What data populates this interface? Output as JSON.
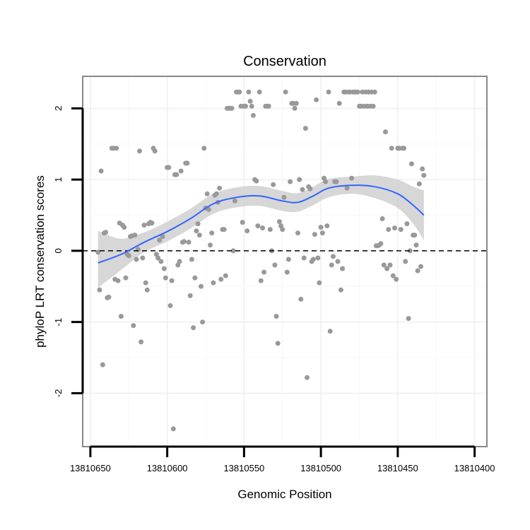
{
  "chart_data": {
    "type": "scatter",
    "title": "Conservation",
    "xlabel": "Genomic Position",
    "ylabel": "phyloP LRT conservation scores",
    "x_reversed": true,
    "xlim": [
      13810655,
      13810392
    ],
    "ylim": [
      -2.75,
      2.45
    ],
    "x_ticks": [
      13810650,
      13810600,
      13810550,
      13810500,
      13810450,
      13810400
    ],
    "x_tick_labels": [
      "13810650",
      "13810600",
      "13810550",
      "13810500",
      "13810450",
      "13810400"
    ],
    "y_ticks": [
      -2,
      -1,
      0,
      1,
      2
    ],
    "y_tick_labels": [
      "-2",
      "-1",
      "0",
      "1",
      "2"
    ],
    "reference_line": {
      "y": 0,
      "style": "dashed"
    },
    "colors": {
      "points": "#999999",
      "smooth": "#3366ff",
      "band": "#d0d0d0",
      "panel_border": "#888888",
      "grid": "#f0f0f0"
    },
    "points": [
      [
        13810645,
        -0.02
      ],
      [
        13810644,
        -0.55
      ],
      [
        13810643,
        1.12
      ],
      [
        13810642,
        -1.6
      ],
      [
        13810641,
        0.25
      ],
      [
        13810640,
        0.26
      ],
      [
        13810639,
        -0.66
      ],
      [
        13810638,
        -0.65
      ],
      [
        13810636,
        1.44
      ],
      [
        13810635,
        1.44
      ],
      [
        13810634,
        -0.4
      ],
      [
        13810633,
        1.44
      ],
      [
        13810632,
        -0.42
      ],
      [
        13810631,
        0.39
      ],
      [
        13810630,
        -0.92
      ],
      [
        13810629,
        0.36
      ],
      [
        13810628,
        0.33
      ],
      [
        13810627,
        -0.38
      ],
      [
        13810626,
        -0.05
      ],
      [
        13810625,
        -0.07
      ],
      [
        13810624,
        0.2
      ],
      [
        13810623,
        0.21
      ],
      [
        13810622,
        -1.05
      ],
      [
        13810621,
        0.22
      ],
      [
        13810620,
        -0.12
      ],
      [
        13810619,
        0.02
      ],
      [
        13810618,
        1.4
      ],
      [
        13810617,
        -1.28
      ],
      [
        13810616,
        -0.1
      ],
      [
        13810615,
        0.36
      ],
      [
        13810614,
        -0.45
      ],
      [
        13810613,
        -0.55
      ],
      [
        13810612,
        0.38
      ],
      [
        13810611,
        0.4
      ],
      [
        13810610,
        0.39
      ],
      [
        13810609,
        1.44
      ],
      [
        13810608,
        1.4
      ],
      [
        13810607,
        -0.05
      ],
      [
        13810606,
        -0.1
      ],
      [
        13810605,
        0.15
      ],
      [
        13810604,
        -0.15
      ],
      [
        13810603,
        0.2
      ],
      [
        13810602,
        -0.25
      ],
      [
        13810601,
        -0.38
      ],
      [
        13810600,
        1.17
      ],
      [
        13810599,
        1.17
      ],
      [
        13810598,
        -0.77
      ],
      [
        13810597,
        -0.42
      ],
      [
        13810596,
        -2.5
      ],
      [
        13810595,
        1.07
      ],
      [
        13810594,
        1.07
      ],
      [
        13810593,
        -0.2
      ],
      [
        13810592,
        -0.15
      ],
      [
        13810591,
        1.12
      ],
      [
        13810590,
        0.12
      ],
      [
        13810589,
        0.13
      ],
      [
        13810588,
        1.23
      ],
      [
        13810587,
        1.23
      ],
      [
        13810586,
        0.12
      ],
      [
        13810585,
        -0.63
      ],
      [
        13810584,
        -0.12
      ],
      [
        13810583,
        -1.08
      ],
      [
        13810582,
        -0.38
      ],
      [
        13810581,
        0.28
      ],
      [
        13810580,
        0.38
      ],
      [
        13810579,
        0.22
      ],
      [
        13810578,
        -0.5
      ],
      [
        13810577,
        -1.0
      ],
      [
        13810576,
        1.44
      ],
      [
        13810575,
        0.6
      ],
      [
        13810574,
        0.8
      ],
      [
        13810573,
        0.58
      ],
      [
        13810572,
        0.08
      ],
      [
        13810571,
        0.25
      ],
      [
        13810570,
        -0.45
      ],
      [
        13810569,
        0.78
      ],
      [
        13810568,
        0.8
      ],
      [
        13810567,
        0.68
      ],
      [
        13810566,
        0.88
      ],
      [
        13810565,
        -0.4
      ],
      [
        13810564,
        0.3
      ],
      [
        13810563,
        0.3
      ],
      [
        13810562,
        -0.35
      ],
      [
        13810561,
        2.0
      ],
      [
        13810560,
        2.0
      ],
      [
        13810559,
        2.0
      ],
      [
        13810558,
        2.0
      ],
      [
        13810557,
        0.0
      ],
      [
        13810556,
        0.7
      ],
      [
        13810555,
        2.23
      ],
      [
        13810554,
        2.23
      ],
      [
        13810553,
        2.23
      ],
      [
        13810552,
        2.03
      ],
      [
        13810551,
        0.4
      ],
      [
        13810550,
        2.03
      ],
      [
        13810549,
        2.03
      ],
      [
        13810548,
        0.28
      ],
      [
        13810547,
        2.23
      ],
      [
        13810546,
        2.1
      ],
      [
        13810545,
        2.03
      ],
      [
        13810544,
        1.9
      ],
      [
        13810543,
        1.0
      ],
      [
        13810542,
        0.98
      ],
      [
        13810541,
        0.35
      ],
      [
        13810540,
        2.23
      ],
      [
        13810539,
        -0.42
      ],
      [
        13810538,
        0.32
      ],
      [
        13810537,
        -0.3
      ],
      [
        13810536,
        2.03
      ],
      [
        13810535,
        2.03
      ],
      [
        13810534,
        2.03
      ],
      [
        13810533,
        0.3
      ],
      [
        13810532,
        0.0
      ],
      [
        13810531,
        0.93
      ],
      [
        13810530,
        -0.2
      ],
      [
        13810529,
        -0.92
      ],
      [
        13810528,
        -1.3
      ],
      [
        13810527,
        0.41
      ],
      [
        13810526,
        0.35
      ],
      [
        13810525,
        0.3
      ],
      [
        13810524,
        0.75
      ],
      [
        13810523,
        2.23
      ],
      [
        13810522,
        -0.3
      ],
      [
        13810521,
        -0.12
      ],
      [
        13810520,
        0.97
      ],
      [
        13810519,
        2.07
      ],
      [
        13810518,
        2.07
      ],
      [
        13810517,
        2.0
      ],
      [
        13810516,
        2.07
      ],
      [
        13810515,
        0.25
      ],
      [
        13810514,
        1.0
      ],
      [
        13810513,
        -0.68
      ],
      [
        13810512,
        0.86
      ],
      [
        13810511,
        -0.1
      ],
      [
        13810510,
        1.72
      ],
      [
        13810509,
        -1.78
      ],
      [
        13810508,
        0.9
      ],
      [
        13810507,
        0.87
      ],
      [
        13810506,
        -0.15
      ],
      [
        13810505,
        -0.12
      ],
      [
        13810504,
        0.23
      ],
      [
        13810503,
        2.12
      ],
      [
        13810502,
        -0.1
      ],
      [
        13810501,
        -0.45
      ],
      [
        13810500,
        0.33
      ],
      [
        13810499,
        0.25
      ],
      [
        13810498,
        1.02
      ],
      [
        13810497,
        0.97
      ],
      [
        13810496,
        0.35
      ],
      [
        13810495,
        2.23
      ],
      [
        13810494,
        -1.13
      ],
      [
        13810493,
        -0.2
      ],
      [
        13810492,
        -0.08
      ],
      [
        13810491,
        0.97
      ],
      [
        13810490,
        0.97
      ],
      [
        13810489,
        -0.15
      ],
      [
        13810488,
        2.07
      ],
      [
        13810487,
        -0.55
      ],
      [
        13810486,
        -0.25
      ],
      [
        13810485,
        2.23
      ],
      [
        13810484,
        2.23
      ],
      [
        13810483,
        0.88
      ],
      [
        13810482,
        2.23
      ],
      [
        13810481,
        2.23
      ],
      [
        13810480,
        1.02
      ],
      [
        13810479,
        2.23
      ],
      [
        13810478,
        2.23
      ],
      [
        13810477,
        2.23
      ],
      [
        13810476,
        2.23
      ],
      [
        13810475,
        2.03
      ],
      [
        13810474,
        2.03
      ],
      [
        13810473,
        2.23
      ],
      [
        13810472,
        2.03
      ],
      [
        13810471,
        2.23
      ],
      [
        13810470,
        2.03
      ],
      [
        13810469,
        2.23
      ],
      [
        13810468,
        2.03
      ],
      [
        13810467,
        2.23
      ],
      [
        13810466,
        2.03
      ],
      [
        13810465,
        2.23
      ],
      [
        13810464,
        0.07
      ],
      [
        13810463,
        0.07
      ],
      [
        13810462,
        0.08
      ],
      [
        13810461,
        0.1
      ],
      [
        13810460,
        0.45
      ],
      [
        13810459,
        -0.2
      ],
      [
        13810458,
        1.67
      ],
      [
        13810457,
        -0.25
      ],
      [
        13810456,
        0.3
      ],
      [
        13810455,
        -0.2
      ],
      [
        13810454,
        1.44
      ],
      [
        13810453,
        -0.35
      ],
      [
        13810452,
        0.32
      ],
      [
        13810451,
        -0.4
      ],
      [
        13810450,
        1.44
      ],
      [
        13810449,
        1.44
      ],
      [
        13810448,
        0.3
      ],
      [
        13810447,
        1.44
      ],
      [
        13810446,
        1.44
      ],
      [
        13810445,
        -0.15
      ],
      [
        13810444,
        0.38
      ],
      [
        13810443,
        -0.95
      ],
      [
        13810442,
        0.0
      ],
      [
        13810441,
        1.22
      ],
      [
        13810440,
        0.22
      ],
      [
        13810439,
        0.22
      ],
      [
        13810438,
        0.08
      ],
      [
        13810437,
        -0.28
      ],
      [
        13810436,
        0.94
      ],
      [
        13810435,
        -0.22
      ],
      [
        13810434,
        1.15
      ],
      [
        13810433,
        1.06
      ]
    ],
    "smooth": {
      "x": [
        13810645,
        13810630,
        13810615,
        13810600,
        13810585,
        13810570,
        13810555,
        13810540,
        13810525,
        13810515,
        13810505,
        13810495,
        13810480,
        13810465,
        13810450,
        13810440,
        13810433
      ],
      "y": [
        -0.17,
        -0.05,
        0.12,
        0.27,
        0.45,
        0.66,
        0.75,
        0.77,
        0.7,
        0.68,
        0.77,
        0.88,
        0.92,
        0.9,
        0.8,
        0.64,
        0.5
      ],
      "lower": [
        -0.52,
        -0.27,
        -0.02,
        0.13,
        0.31,
        0.52,
        0.61,
        0.63,
        0.56,
        0.55,
        0.64,
        0.75,
        0.8,
        0.74,
        0.6,
        0.38,
        0.15
      ],
      "upper": [
        0.28,
        0.17,
        0.26,
        0.41,
        0.59,
        0.8,
        0.89,
        0.91,
        0.84,
        0.81,
        0.9,
        1.01,
        1.04,
        1.06,
        1.0,
        0.9,
        0.85
      ]
    }
  }
}
